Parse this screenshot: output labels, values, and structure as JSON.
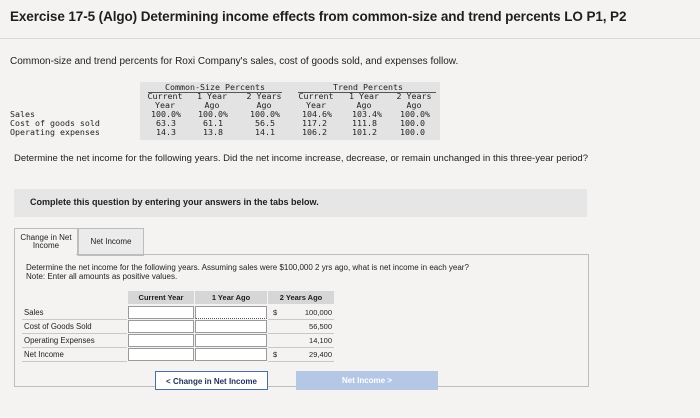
{
  "title": "Exercise 17-5 (Algo) Determining income effects from common-size and trend percents LO P1, P2",
  "intro": "Common-size and trend percents for Roxi Company's sales, cost of goods sold, and expenses follow.",
  "data_table": {
    "group_common": "Common-Size Percents",
    "group_trend": "Trend Percents",
    "col_current": [
      "Current",
      "Year"
    ],
    "col_1yr": [
      "1 Year",
      "Ago"
    ],
    "col_2yr": [
      "2 Years",
      "Ago"
    ],
    "rows": [
      {
        "label": "Sales",
        "cs": [
          "100.0%",
          "100.0%",
          "100.0%"
        ],
        "tr": [
          "104.6%",
          "103.4%",
          "100.0%"
        ]
      },
      {
        "label": "Cost of goods sold",
        "cs": [
          "63.3",
          "61.1",
          "56.5"
        ],
        "tr": [
          "117.2",
          "111.8",
          "100.0"
        ]
      },
      {
        "label": "Operating expenses",
        "cs": [
          "14.3",
          "13.8",
          "14.1"
        ],
        "tr": [
          "106.2",
          "101.2",
          "100.0"
        ]
      }
    ]
  },
  "question": "Determine the net income for the following years. Did the net income increase, decrease, or remain unchanged in this three-year period?",
  "banner": "Complete this question by entering your answers in the tabs below.",
  "tabs": {
    "change_line1": "Change in Net",
    "change_line2": "Income",
    "net_income": "Net Income"
  },
  "instructions": {
    "line1": "Determine the net income for the following years. Assuming sales were $100,000 2 yrs ago, what is net income in each year?",
    "line2": "Note: Enter all amounts as positive values."
  },
  "calc_table": {
    "headers": [
      "Current Year",
      "1 Year Ago",
      "2 Years Ago"
    ],
    "rows": [
      {
        "label": "Sales",
        "dollar": "$",
        "value": "100,000"
      },
      {
        "label": "Cost of Goods Sold",
        "dollar": "",
        "value": "56,500"
      },
      {
        "label": "Operating Expenses",
        "dollar": "",
        "value": "14,100"
      },
      {
        "label": "Net Income",
        "dollar": "$",
        "value": "29,400"
      }
    ]
  },
  "buttons": {
    "prev_arrow": "<",
    "prev": "Change in Net Income",
    "next": "Net Income",
    "next_arrow": ">"
  }
}
